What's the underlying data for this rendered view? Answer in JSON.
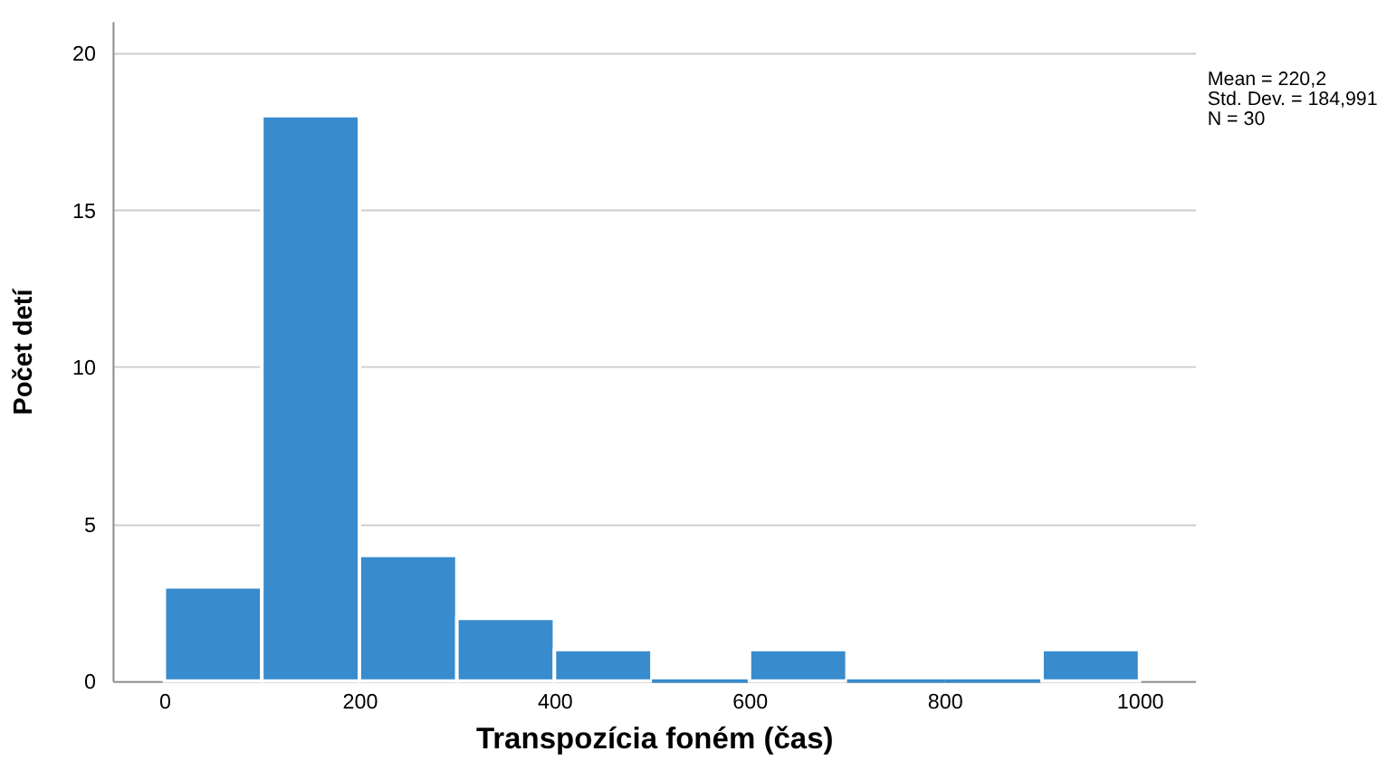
{
  "chart_data": {
    "type": "histogram",
    "xlabel": "Transpozícia foném (čas)",
    "ylabel": "Počet detí",
    "bins": [
      0,
      100,
      200,
      300,
      400,
      500,
      600,
      700,
      800,
      900,
      1000
    ],
    "values": [
      3,
      18,
      4,
      2,
      1,
      0,
      1,
      0,
      0,
      1
    ],
    "color": "#388bcc",
    "xlim": [
      -53,
      1057
    ],
    "xticks": [
      0,
      200,
      400,
      600,
      800,
      1000
    ],
    "ylim": [
      0,
      21
    ],
    "yticks": [
      0,
      5,
      10,
      15,
      20
    ],
    "grid": "y",
    "annotations": [
      "Mean = 220,2",
      "Std. Dev. = 184,991",
      "N = 30"
    ]
  }
}
